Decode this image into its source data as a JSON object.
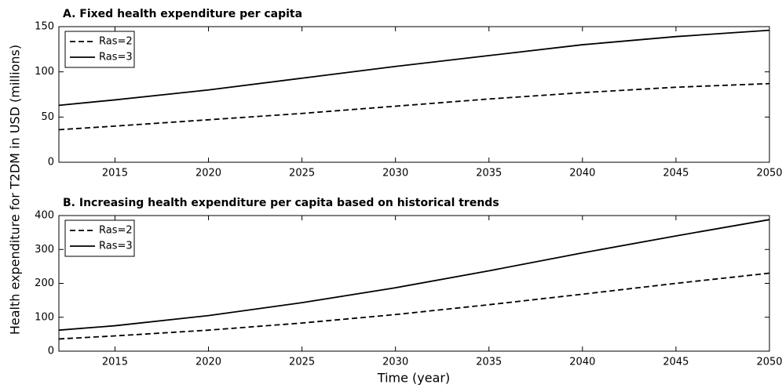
{
  "axis_labels": {
    "y": "Health expenditure for T2DM in USD (millions)",
    "x": "Time (year)"
  },
  "chart_data": [
    {
      "type": "line",
      "title": "A. Fixed health expenditure per capita",
      "x": [
        2012,
        2015,
        2020,
        2025,
        2030,
        2035,
        2040,
        2045,
        2050
      ],
      "series": [
        {
          "name": "Ras=2",
          "color": "#000000",
          "linestyle": "dashed",
          "values": [
            36,
            40,
            47,
            54,
            62,
            70,
            77,
            83,
            87
          ]
        },
        {
          "name": "Ras=3",
          "color": "#000000",
          "linestyle": "solid",
          "values": [
            63,
            69,
            80,
            93,
            106,
            118,
            130,
            139,
            146
          ]
        }
      ],
      "xlim": [
        2012,
        2050
      ],
      "xticks": [
        2015,
        2020,
        2025,
        2030,
        2035,
        2040,
        2045,
        2050
      ],
      "ylim": [
        0,
        150
      ],
      "yticks": [
        0,
        50,
        100,
        150
      ],
      "grid": false,
      "legend": "upper left"
    },
    {
      "type": "line",
      "title": "B. Increasing health expenditure per capita based on historical trends",
      "x": [
        2012,
        2015,
        2020,
        2025,
        2030,
        2035,
        2040,
        2045,
        2050
      ],
      "series": [
        {
          "name": "Ras=2",
          "color": "#000000",
          "linestyle": "dashed",
          "values": [
            36,
            45,
            62,
            83,
            108,
            137,
            168,
            200,
            230
          ]
        },
        {
          "name": "Ras=3",
          "color": "#000000",
          "linestyle": "solid",
          "values": [
            62,
            75,
            105,
            143,
            187,
            237,
            290,
            340,
            388
          ]
        }
      ],
      "xlim": [
        2012,
        2050
      ],
      "xticks": [
        2015,
        2020,
        2025,
        2030,
        2035,
        2040,
        2045,
        2050
      ],
      "ylim": [
        0,
        400
      ],
      "yticks": [
        0,
        100,
        200,
        300,
        400
      ],
      "grid": false,
      "legend": "upper left"
    }
  ]
}
